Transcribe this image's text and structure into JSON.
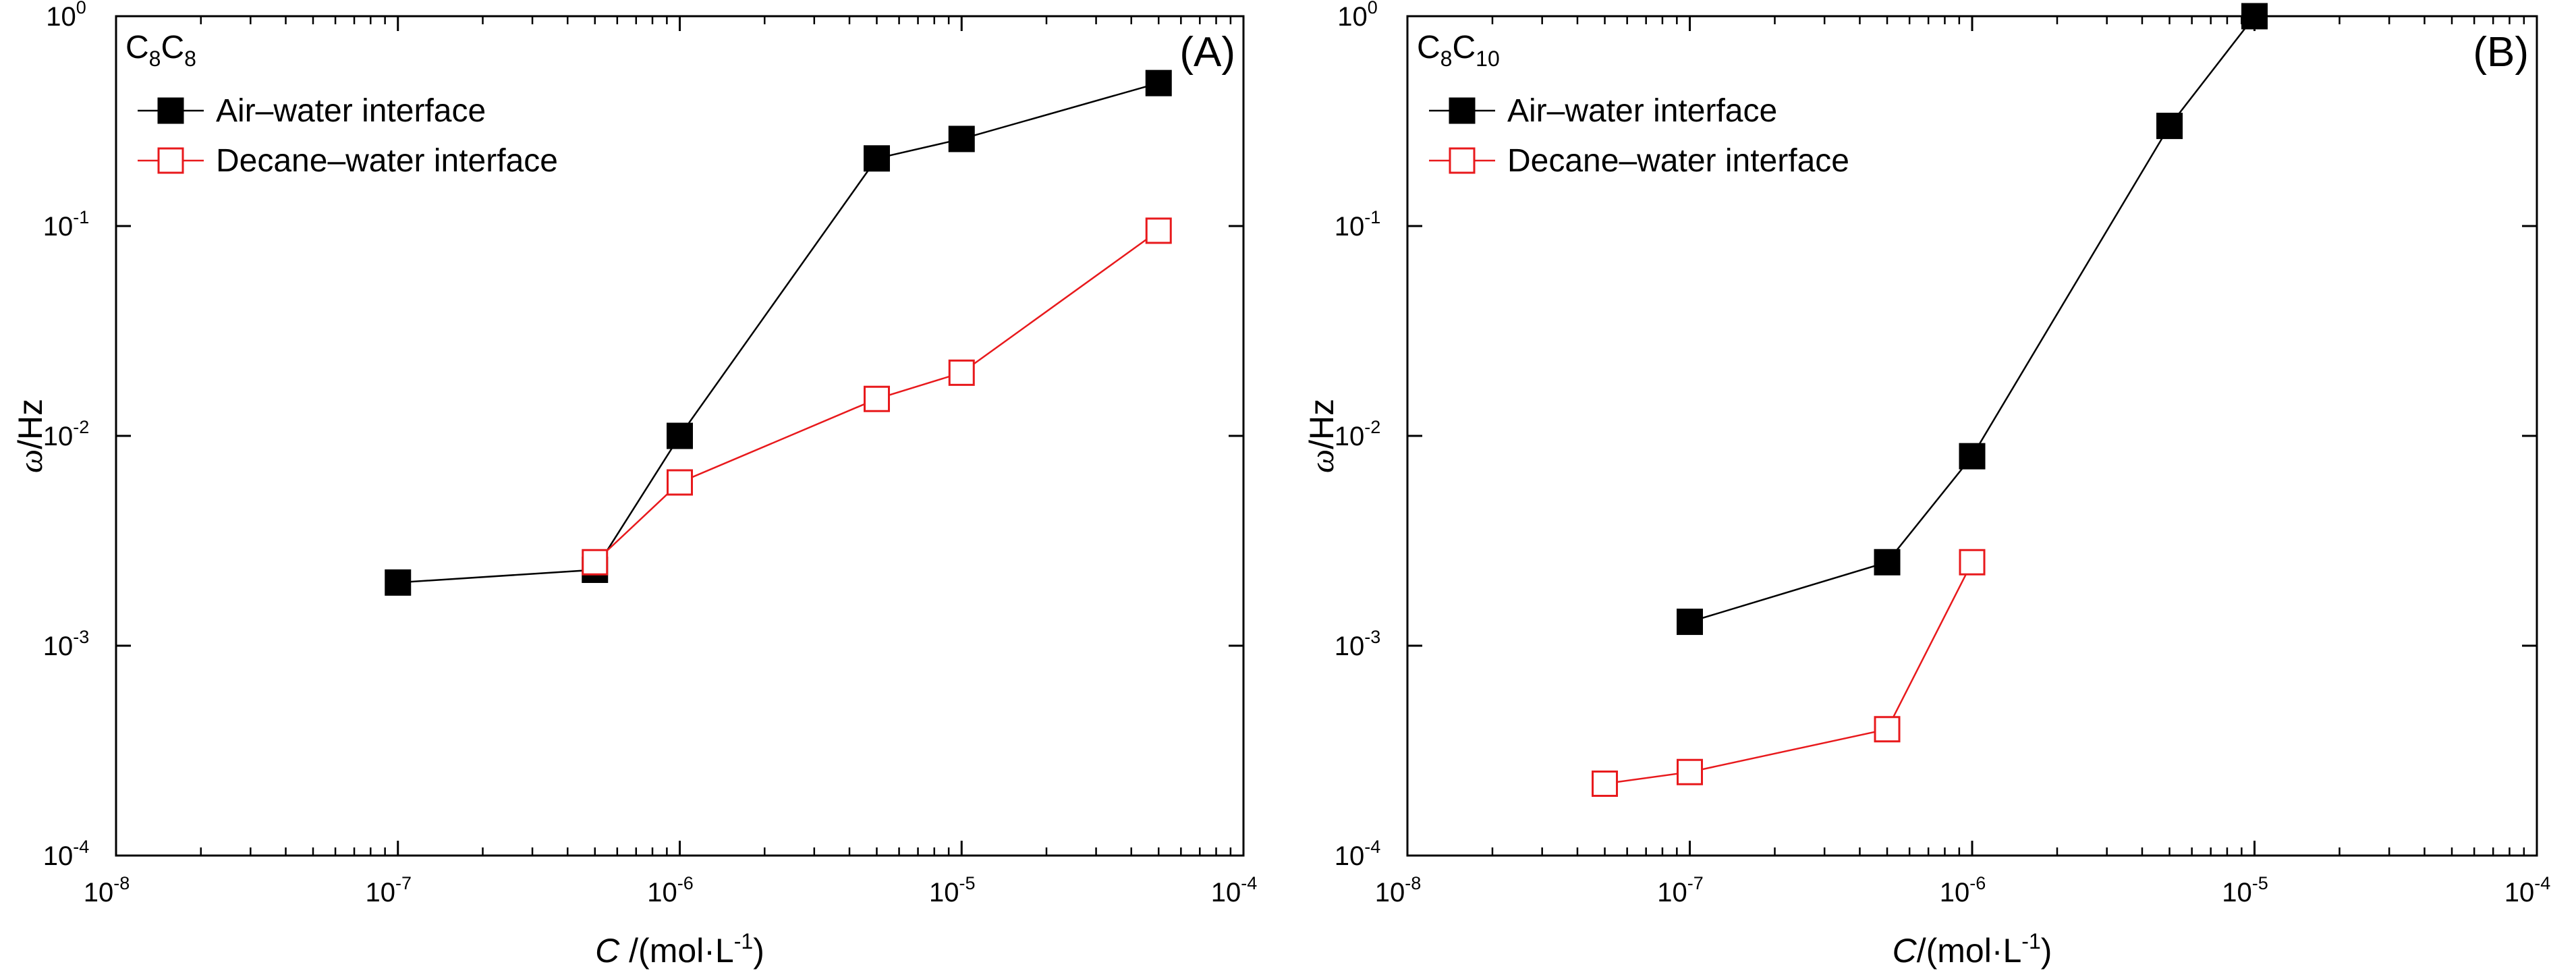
{
  "chart_data": [
    {
      "type": "line",
      "panel_label": "(A)",
      "compound": {
        "base": "C",
        "sub1": "8",
        "mid": "C",
        "sub2": "8"
      },
      "x_scale": "log",
      "y_scale": "log",
      "xlim": [
        1e-08,
        0.0001
      ],
      "ylim": [
        0.0001,
        1
      ],
      "x_tick_labels": [
        {
          "value": 1e-08,
          "base": "10",
          "exp": "-8"
        },
        {
          "value": 1e-07,
          "base": "10",
          "exp": "-7"
        },
        {
          "value": 1e-06,
          "base": "10",
          "exp": "-6"
        },
        {
          "value": 1e-05,
          "base": "10",
          "exp": "-5"
        },
        {
          "value": 0.0001,
          "base": "10",
          "exp": "-4"
        }
      ],
      "y_tick_labels": [
        {
          "value": 0.0001,
          "base": "10",
          "exp": "-4"
        },
        {
          "value": 0.001,
          "base": "10",
          "exp": "-3"
        },
        {
          "value": 0.01,
          "base": "10",
          "exp": "-2"
        },
        {
          "value": 0.1,
          "base": "10",
          "exp": "-1"
        },
        {
          "value": 1,
          "base": "10",
          "exp": "0"
        }
      ],
      "xlabel": {
        "symbol": "C",
        "text": " /(mol·L",
        "sup": "-1",
        "tail": ")"
      },
      "ylabel": {
        "symbol": "ω",
        "text": "/Hz"
      },
      "legend_position": "top-left",
      "series": [
        {
          "name": "Air–water interface",
          "color": "#000000",
          "marker": "filled-square",
          "x": [
            1e-07,
            5e-07,
            1e-06,
            5e-06,
            1e-05,
            5e-05
          ],
          "y": [
            0.002,
            0.0023,
            0.01,
            0.21,
            0.26,
            0.48
          ]
        },
        {
          "name": "Decane–water interface",
          "color": "#e8191c",
          "marker": "open-square",
          "x": [
            5e-07,
            1e-06,
            5e-06,
            1e-05,
            5e-05
          ],
          "y": [
            0.0025,
            0.006,
            0.015,
            0.02,
            0.095
          ]
        }
      ]
    },
    {
      "type": "line",
      "panel_label": "(B)",
      "compound": {
        "base": "C",
        "sub1": "8",
        "mid": "C",
        "sub2": "10"
      },
      "x_scale": "log",
      "y_scale": "log",
      "xlim": [
        1e-08,
        0.0001
      ],
      "ylim": [
        0.0001,
        1
      ],
      "x_tick_labels": [
        {
          "value": 1e-08,
          "base": "10",
          "exp": "-8"
        },
        {
          "value": 1e-07,
          "base": "10",
          "exp": "-7"
        },
        {
          "value": 1e-06,
          "base": "10",
          "exp": "-6"
        },
        {
          "value": 1e-05,
          "base": "10",
          "exp": "-5"
        },
        {
          "value": 0.0001,
          "base": "10",
          "exp": "-4"
        }
      ],
      "y_tick_labels": [
        {
          "value": 0.0001,
          "base": "10",
          "exp": "-4"
        },
        {
          "value": 0.001,
          "base": "10",
          "exp": "-3"
        },
        {
          "value": 0.01,
          "base": "10",
          "exp": "-2"
        },
        {
          "value": 0.1,
          "base": "10",
          "exp": "-1"
        },
        {
          "value": 1,
          "base": "10",
          "exp": "0"
        }
      ],
      "xlabel": {
        "symbol": "C",
        "text": "/(mol·L",
        "sup": "-1",
        "tail": ")"
      },
      "ylabel": {
        "symbol": "ω",
        "text": "/Hz"
      },
      "legend_position": "top-left",
      "series": [
        {
          "name": "Air–water interface",
          "color": "#000000",
          "marker": "filled-square",
          "x": [
            1e-07,
            5e-07,
            1e-06,
            5e-06,
            1e-05
          ],
          "y": [
            0.0013,
            0.0025,
            0.008,
            0.3,
            1.0
          ]
        },
        {
          "name": "Decane–water interface",
          "color": "#e8191c",
          "marker": "open-square",
          "x": [
            5e-08,
            1e-07,
            5e-07,
            1e-06
          ],
          "y": [
            0.00022,
            0.00025,
            0.0004,
            0.0025
          ]
        }
      ]
    }
  ]
}
